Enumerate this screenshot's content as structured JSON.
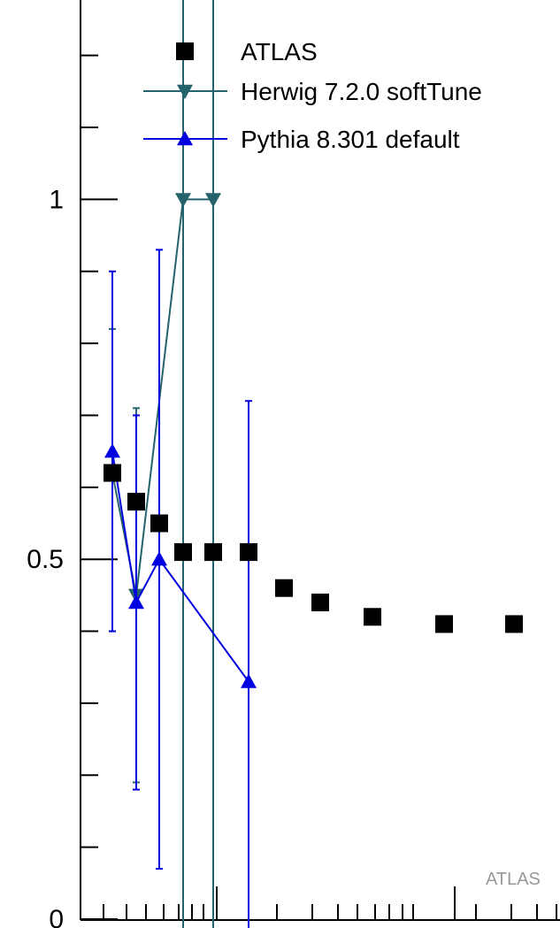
{
  "chart_data": {
    "type": "scatter",
    "x": [
      1,
      2,
      3,
      4,
      5,
      6,
      7,
      8,
      9,
      10,
      11
    ],
    "ylim": [
      0,
      2.5
    ],
    "y_ticks": [
      "0",
      "0.5",
      "1",
      "1.5",
      "2",
      "2.5"
    ],
    "watermark": "ATLAS",
    "legend_position": "top-right",
    "series": [
      {
        "name": "ATLAS",
        "marker": "square",
        "color": "#000000",
        "points": [
          {
            "x": 1,
            "y": 0.62
          },
          {
            "x": 2,
            "y": 0.58
          },
          {
            "x": 3,
            "y": 0.55
          },
          {
            "x": 4,
            "y": 0.51
          },
          {
            "x": 5,
            "y": 0.51
          },
          {
            "x": 6,
            "y": 0.51
          },
          {
            "x": 7,
            "y": 0.46
          },
          {
            "x": 8,
            "y": 0.44
          },
          {
            "x": 9,
            "y": 0.42
          },
          {
            "x": 10,
            "y": 0.41
          },
          {
            "x": 11,
            "y": 0.41
          }
        ]
      },
      {
        "name": "Herwig 7.2.0 softTune",
        "marker": "triangle-down",
        "color": "#24636b",
        "points": [
          {
            "x": 1,
            "y": 0.62,
            "lo": 0.4,
            "hi": 0.82
          },
          {
            "x": 2,
            "y": 0.45,
            "lo": 0.19,
            "hi": 0.71
          },
          {
            "x": 4,
            "y": 1.0,
            "lo": -0.4,
            "hi": 2.41
          },
          {
            "x": 5,
            "y": 1.0,
            "lo": -0.4,
            "hi": 2.41
          }
        ]
      },
      {
        "name": "Pythia 8.301 default",
        "marker": "triangle-up",
        "color": "#0000e0",
        "points": [
          {
            "x": 1,
            "y": 0.65,
            "lo": 0.4,
            "hi": 0.9
          },
          {
            "x": 2,
            "y": 0.44,
            "lo": 0.18,
            "hi": 0.7
          },
          {
            "x": 3,
            "y": 0.5,
            "lo": 0.07,
            "hi": 0.93
          },
          {
            "x": 6,
            "y": 0.33,
            "lo": -0.4,
            "hi": 0.72
          }
        ]
      }
    ]
  }
}
